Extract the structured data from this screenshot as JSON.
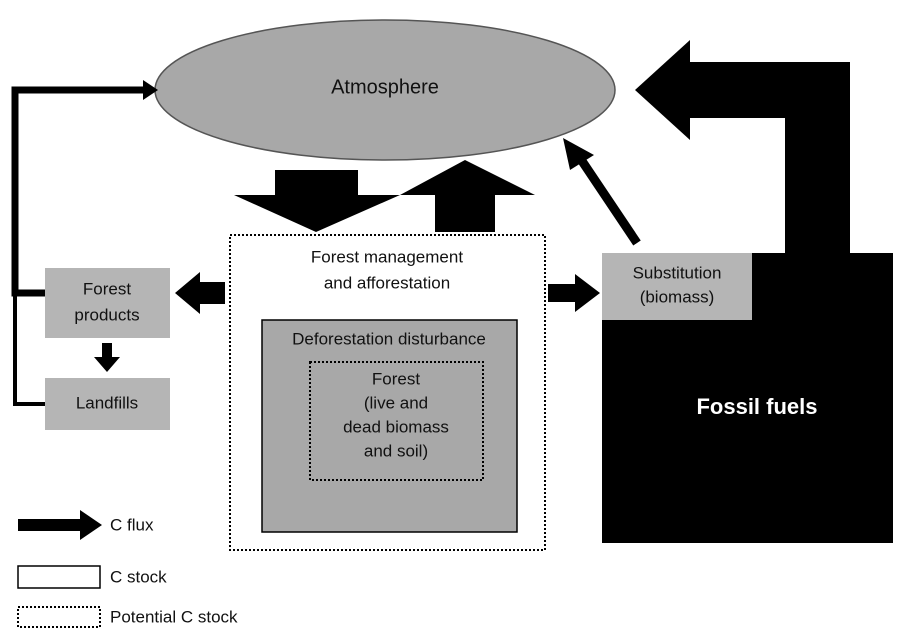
{
  "nodes": [
    {
      "label": "Atmosphere"
    },
    {
      "label": [
        "Forest management",
        "and afforestation"
      ]
    },
    {
      "label": "Deforestation disturbance"
    },
    {
      "label": [
        "Forest",
        "(live and",
        "dead biomass",
        "and soil)"
      ]
    },
    {
      "label": [
        "Forest",
        "products"
      ]
    },
    {
      "label": "Landfills"
    },
    {
      "label": [
        "Substitution",
        "(biomass)"
      ]
    },
    {
      "label": "Fossil fuels"
    }
  ],
  "legend": [
    "C flux",
    "C stock",
    "Potential C stock"
  ]
}
